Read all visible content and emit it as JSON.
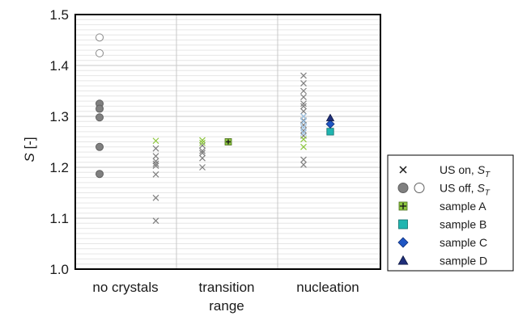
{
  "chart_data": {
    "type": "scatter",
    "ylabel_italic": "S",
    "ylabel_rest": " [-]",
    "ylim": [
      1.0,
      1.5
    ],
    "yticks": [
      "1.0",
      "1.1",
      "1.2",
      "1.3",
      "1.4",
      "1.5"
    ],
    "yticks_values": [
      1.0,
      1.1,
      1.2,
      1.3,
      1.4,
      1.5
    ],
    "categories": [
      {
        "line1": "no crystals",
        "line2": ""
      },
      {
        "line1": "transition",
        "line2": "range"
      },
      {
        "line1": "nucleation",
        "line2": ""
      }
    ],
    "grid": {
      "minor_step": 0.01,
      "major_step": 0.1
    },
    "legend": {
      "placement": "right",
      "entries": [
        {
          "text": "US on, ",
          "sub_italic": "S",
          "sub": "T",
          "marker": "cross"
        },
        {
          "text": "US off, ",
          "sub_italic": "S",
          "sub": "T",
          "marker": "circle-pair"
        },
        {
          "text": "sample A",
          "sub_italic": "",
          "sub": "",
          "marker": "plus-square"
        },
        {
          "text": "sample B",
          "sub_italic": "",
          "sub": "",
          "marker": "square"
        },
        {
          "text": "sample C",
          "sub_italic": "",
          "sub": "",
          "marker": "diamond"
        },
        {
          "text": "sample D",
          "sub_italic": "",
          "sub": "",
          "marker": "triangle"
        }
      ]
    },
    "series": [
      {
        "key": "us_off_filled",
        "points": [
          {
            "x": 1,
            "y": 1.325
          },
          {
            "x": 1,
            "y": 1.315
          },
          {
            "x": 1,
            "y": 1.298
          },
          {
            "x": 1,
            "y": 1.24
          },
          {
            "x": 1,
            "y": 1.187
          }
        ]
      },
      {
        "key": "us_off_open",
        "points": [
          {
            "x": 1,
            "y": 1.455
          },
          {
            "x": 1,
            "y": 1.424
          }
        ]
      },
      {
        "key": "us_on_gray",
        "points": [
          {
            "x": 1.3,
            "y": 1.237
          },
          {
            "x": 1.3,
            "y": 1.222
          },
          {
            "x": 1.3,
            "y": 1.212
          },
          {
            "x": 1.3,
            "y": 1.207
          },
          {
            "x": 1.3,
            "y": 1.203
          },
          {
            "x": 1.3,
            "y": 1.186
          },
          {
            "x": 1.3,
            "y": 1.14
          },
          {
            "x": 1.3,
            "y": 1.095
          },
          {
            "x": 2,
            "y": 1.243
          },
          {
            "x": 2,
            "y": 1.232
          },
          {
            "x": 2,
            "y": 1.228
          },
          {
            "x": 2,
            "y": 1.218
          },
          {
            "x": 2,
            "y": 1.2
          },
          {
            "x": 3,
            "y": 1.38
          },
          {
            "x": 3,
            "y": 1.365
          },
          {
            "x": 3,
            "y": 1.35
          },
          {
            "x": 3,
            "y": 1.338
          },
          {
            "x": 3,
            "y": 1.325
          },
          {
            "x": 3,
            "y": 1.32
          },
          {
            "x": 3,
            "y": 1.31
          },
          {
            "x": 3,
            "y": 1.3
          },
          {
            "x": 3,
            "y": 1.292
          },
          {
            "x": 3,
            "y": 1.283
          },
          {
            "x": 3,
            "y": 1.272
          },
          {
            "x": 3,
            "y": 1.262
          },
          {
            "x": 3,
            "y": 1.215
          },
          {
            "x": 3,
            "y": 1.205
          }
        ]
      },
      {
        "key": "us_on_green",
        "points": [
          {
            "x": 1.3,
            "y": 1.252
          },
          {
            "x": 2,
            "y": 1.253
          },
          {
            "x": 2,
            "y": 1.248
          },
          {
            "x": 3,
            "y": 1.255
          },
          {
            "x": 3,
            "y": 1.24
          }
        ]
      },
      {
        "key": "us_on_blue",
        "points": [
          {
            "x": 3,
            "y": 1.3
          },
          {
            "x": 3,
            "y": 1.29
          },
          {
            "x": 3,
            "y": 1.278
          },
          {
            "x": 3,
            "y": 1.268
          }
        ]
      },
      {
        "key": "sample_A",
        "points": [
          {
            "x": 2,
            "y": 1.25
          }
        ]
      },
      {
        "key": "sample_B",
        "points": [
          {
            "x": 3,
            "y": 1.27
          }
        ]
      },
      {
        "key": "sample_C",
        "points": [
          {
            "x": 3,
            "y": 1.285
          }
        ]
      },
      {
        "key": "sample_D",
        "points": [
          {
            "x": 3,
            "y": 1.297
          }
        ]
      }
    ],
    "colors": {
      "frame": "#000000",
      "grid_minor": "#e6e6e6",
      "grid_major": "#c8c8c8",
      "us_off_fill": "#808080",
      "us_on_gray": "#808080",
      "us_on_green": "#8dc63f",
      "us_on_blue": "#9dc3e6",
      "sample_A": "#8dc63f",
      "sample_B": "#1fb5b0",
      "sample_C": "#1f56c4",
      "sample_D": "#1f2f7a"
    }
  }
}
